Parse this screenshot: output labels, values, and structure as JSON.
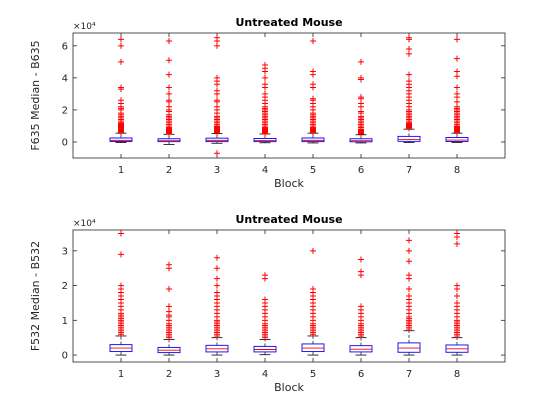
{
  "colors": {
    "box": "#0000ff",
    "median": "#ff0000",
    "whisker": "#000000",
    "outlier": "#ff0000",
    "axes": "#262626"
  },
  "chart_data": [
    {
      "type": "box",
      "title": "Untreated Mouse",
      "xlabel": "Block",
      "ylabel": "F635 Median - B635",
      "y_exponent_label": "×10⁴",
      "y_scale": 10000,
      "ylim": [
        -10000,
        68000
      ],
      "yticks": [
        0,
        20000,
        40000,
        60000
      ],
      "ytick_labels": [
        "0",
        "2",
        "4",
        "6"
      ],
      "categories": [
        "1",
        "2",
        "3",
        "4",
        "5",
        "6",
        "7",
        "8"
      ],
      "boxes": [
        {
          "whisker_low": -300,
          "q1": 300,
          "median": 1000,
          "q3": 2500,
          "whisker_high": 5500,
          "outliers": [
            6000,
            6500,
            7000,
            7500,
            8000,
            8500,
            9000,
            9500,
            10000,
            10500,
            11000,
            11500,
            12000,
            13000,
            14000,
            15000,
            16000,
            17000,
            18000,
            20000,
            21000,
            22000,
            24000,
            26000,
            33000,
            34000,
            50000,
            60000,
            64000
          ]
        },
        {
          "whisker_low": -1500,
          "q1": 200,
          "median": 800,
          "q3": 2000,
          "whisker_high": 4800,
          "outliers": [
            5000,
            5500,
            6000,
            6500,
            7000,
            7500,
            8000,
            8500,
            9000,
            10000,
            11000,
            12000,
            13000,
            14000,
            15000,
            16000,
            17000,
            19000,
            20000,
            22000,
            25000,
            26000,
            30000,
            34000,
            42000,
            51000,
            63000
          ]
        },
        {
          "whisker_low": -800,
          "q1": 200,
          "median": 1000,
          "q3": 2400,
          "whisker_high": 5200,
          "outliers": [
            -7000,
            5500,
            6000,
            6500,
            7000,
            7500,
            8000,
            8500,
            9000,
            9500,
            10000,
            11000,
            12000,
            13000,
            14000,
            15000,
            16000,
            18000,
            20000,
            22000,
            25000,
            26000,
            30000,
            32000,
            36000,
            38000,
            40000,
            60000,
            63000,
            65000
          ]
        },
        {
          "whisker_low": -500,
          "q1": 200,
          "median": 900,
          "q3": 2200,
          "whisker_high": 5000,
          "outliers": [
            5000,
            5500,
            6000,
            6500,
            7000,
            7500,
            8000,
            8500,
            9000,
            10000,
            11000,
            12000,
            13000,
            14000,
            15000,
            16000,
            17000,
            18000,
            19000,
            20000,
            21000,
            22000,
            24000,
            26000,
            28000,
            30000,
            34000,
            36000,
            40000,
            44000,
            46000,
            48000
          ]
        },
        {
          "whisker_low": -600,
          "q1": 200,
          "median": 1000,
          "q3": 2500,
          "whisker_high": 5500,
          "outliers": [
            6000,
            6500,
            7000,
            7500,
            8000,
            8500,
            9000,
            10000,
            11000,
            12000,
            13000,
            14000,
            15000,
            16000,
            17000,
            18000,
            20000,
            22000,
            24000,
            26000,
            27000,
            34000,
            36000,
            42000,
            44000,
            63000
          ]
        },
        {
          "whisker_low": -600,
          "q1": 100,
          "median": 800,
          "q3": 2000,
          "whisker_high": 4500,
          "outliers": [
            5000,
            5500,
            6000,
            6500,
            7000,
            7500,
            8000,
            9000,
            10000,
            11000,
            12000,
            13000,
            14000,
            15000,
            16000,
            18000,
            19000,
            22000,
            24000,
            27000,
            28000,
            39000,
            40000,
            50000
          ]
        },
        {
          "whisker_low": -300,
          "q1": 400,
          "median": 1500,
          "q3": 3500,
          "whisker_high": 8000,
          "outliers": [
            8500,
            9000,
            9500,
            10000,
            10500,
            11000,
            11500,
            12000,
            13000,
            14000,
            15000,
            16000,
            17000,
            18000,
            19000,
            20000,
            22000,
            24000,
            26000,
            28000,
            30000,
            32000,
            34000,
            36000,
            38000,
            42000,
            55000,
            58000,
            64000,
            65000
          ]
        },
        {
          "whisker_low": -300,
          "q1": 300,
          "median": 1200,
          "q3": 2800,
          "whisker_high": 5500,
          "outliers": [
            6000,
            6500,
            7000,
            7500,
            8000,
            8500,
            9000,
            9500,
            10000,
            11000,
            12000,
            13000,
            14000,
            15000,
            16000,
            17000,
            18000,
            19000,
            20000,
            21000,
            22000,
            25000,
            28000,
            30000,
            34000,
            41000,
            44000,
            52000,
            64000
          ]
        }
      ]
    },
    {
      "type": "box",
      "title": "Untreated Mouse",
      "xlabel": "Block",
      "ylabel": "F532 Median - B532",
      "y_exponent_label": "×10⁴",
      "y_scale": 10000,
      "ylim": [
        -2000,
        36000
      ],
      "yticks": [
        0,
        10000,
        20000,
        30000
      ],
      "ytick_labels": [
        "0",
        "1",
        "2",
        "3"
      ],
      "categories": [
        "1",
        "2",
        "3",
        "4",
        "5",
        "6",
        "7",
        "8"
      ],
      "boxes": [
        {
          "whisker_low": 0,
          "q1": 1000,
          "median": 2000,
          "q3": 3000,
          "whisker_high": 5500,
          "outliers": [
            6000,
            6500,
            7000,
            7500,
            8000,
            8500,
            9000,
            9500,
            10000,
            10500,
            11000,
            11500,
            12000,
            13000,
            14000,
            15000,
            16000,
            17000,
            18000,
            19000,
            20000,
            29000,
            35000
          ]
        },
        {
          "whisker_low": 0,
          "q1": 700,
          "median": 1400,
          "q3": 2200,
          "whisker_high": 4500,
          "outliers": [
            5000,
            5500,
            6000,
            6500,
            7000,
            7500,
            8000,
            8500,
            9000,
            10000,
            11000,
            11500,
            12500,
            14000,
            19000,
            25000,
            26000
          ]
        },
        {
          "whisker_low": 0,
          "q1": 900,
          "median": 1800,
          "q3": 2800,
          "whisker_high": 5000,
          "outliers": [
            5500,
            6000,
            6500,
            7000,
            7500,
            8000,
            8500,
            9000,
            9500,
            10000,
            11000,
            12000,
            13000,
            14000,
            15000,
            16000,
            17000,
            18000,
            20000,
            22000,
            25000,
            28000
          ]
        },
        {
          "whisker_low": 100,
          "q1": 900,
          "median": 1600,
          "q3": 2500,
          "whisker_high": 4500,
          "outliers": [
            5000,
            5500,
            6000,
            6500,
            7000,
            7500,
            8000,
            8500,
            9000,
            10000,
            11000,
            12000,
            13000,
            14000,
            15000,
            16000,
            22000,
            23000
          ]
        },
        {
          "whisker_low": 0,
          "q1": 1000,
          "median": 2000,
          "q3": 3200,
          "whisker_high": 5500,
          "outliers": [
            6000,
            6500,
            7000,
            7500,
            8000,
            8500,
            9000,
            10000,
            11000,
            12000,
            13000,
            14000,
            15000,
            16000,
            17000,
            18000,
            19000,
            30000
          ]
        },
        {
          "whisker_low": 0,
          "q1": 900,
          "median": 1700,
          "q3": 2700,
          "whisker_high": 5000,
          "outliers": [
            5500,
            6000,
            6500,
            7000,
            7500,
            8000,
            8500,
            9000,
            10000,
            11000,
            12000,
            13000,
            14000,
            23000,
            24000,
            27500
          ]
        },
        {
          "whisker_low": 0,
          "q1": 800,
          "median": 2000,
          "q3": 3500,
          "whisker_high": 7000,
          "outliers": [
            7500,
            8000,
            8500,
            9000,
            9500,
            10000,
            10500,
            11000,
            12000,
            13000,
            14000,
            15000,
            16000,
            17000,
            19000,
            22000,
            23000,
            27000,
            30000,
            33000
          ]
        },
        {
          "whisker_low": 0,
          "q1": 800,
          "median": 1800,
          "q3": 2900,
          "whisker_high": 5000,
          "outliers": [
            5500,
            6000,
            6500,
            7000,
            7500,
            8000,
            8500,
            9000,
            9500,
            10000,
            11000,
            12000,
            13000,
            14000,
            15000,
            17000,
            19000,
            20000,
            32000,
            34000,
            35000
          ]
        }
      ]
    }
  ]
}
